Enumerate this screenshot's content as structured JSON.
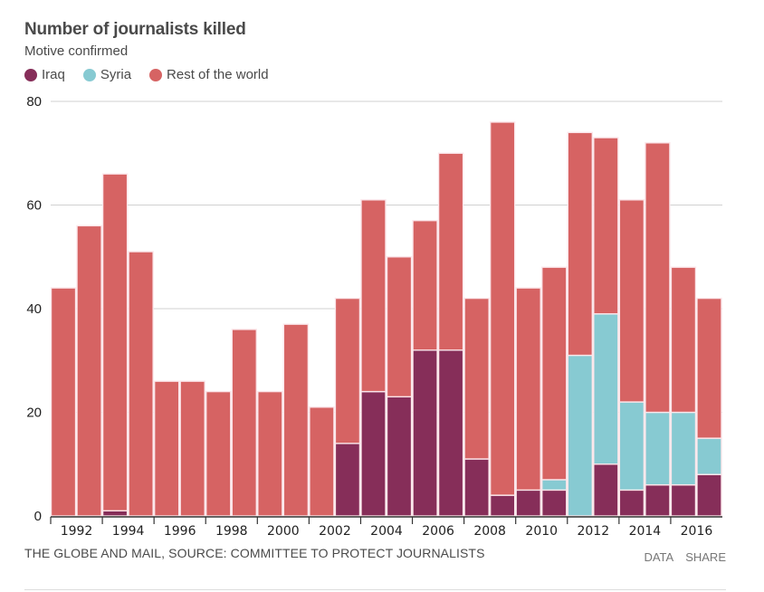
{
  "header": {
    "title": "Number of journalists killed",
    "subtitle": "Motive confirmed"
  },
  "legend": [
    {
      "label": "Iraq",
      "color": "#862e59"
    },
    {
      "label": "Syria",
      "color": "#87cad2"
    },
    {
      "label": "Rest of the world",
      "color": "#d66363"
    }
  ],
  "footer": {
    "source": "THE GLOBE AND MAIL, SOURCE: COMMITTEE TO PROTECT JOURNALISTS",
    "data_link": "DATA",
    "share_link": "SHARE"
  },
  "chart_data": {
    "type": "bar",
    "stacked": true,
    "title": "Number of journalists killed",
    "subtitle": "Motive confirmed",
    "xlabel": "",
    "ylabel": "",
    "ylim": [
      0,
      80
    ],
    "yticks": [
      0,
      20,
      40,
      60,
      80
    ],
    "grid": true,
    "legend_position": "top-left",
    "categories": [
      "1992",
      "1993",
      "1994",
      "1995",
      "1996",
      "1997",
      "1998",
      "1999",
      "2000",
      "2001",
      "2002",
      "2003",
      "2004",
      "2005",
      "2006",
      "2007",
      "2008",
      "2009",
      "2010",
      "2011",
      "2012",
      "2013",
      "2014",
      "2015",
      "2016",
      "2017"
    ],
    "xtick_labels": [
      "1992",
      "1994",
      "1996",
      "1998",
      "2000",
      "2002",
      "2004",
      "2006",
      "2008",
      "2010",
      "2012",
      "2014",
      "2016"
    ],
    "series": [
      {
        "name": "Iraq",
        "color": "#862e59",
        "values": [
          0,
          0,
          1,
          0,
          0,
          0,
          0,
          0,
          0,
          0,
          0,
          14,
          24,
          23,
          32,
          32,
          11,
          4,
          5,
          5,
          0,
          10,
          5,
          6,
          6,
          8
        ]
      },
      {
        "name": "Syria",
        "color": "#87cad2",
        "values": [
          0,
          0,
          0,
          0,
          0,
          0,
          0,
          0,
          0,
          0,
          0,
          0,
          0,
          0,
          0,
          0,
          0,
          0,
          0,
          2,
          31,
          29,
          17,
          14,
          14,
          7
        ]
      },
      {
        "name": "Rest of the world",
        "color": "#d66363",
        "values": [
          44,
          56,
          65,
          51,
          26,
          26,
          24,
          36,
          24,
          37,
          21,
          28,
          37,
          27,
          25,
          38,
          31,
          72,
          39,
          41,
          43,
          34,
          39,
          52,
          28,
          27
        ]
      }
    ],
    "totals": [
      44,
      56,
      66,
      51,
      26,
      26,
      24,
      36,
      24,
      37,
      21,
      42,
      61,
      50,
      57,
      70,
      42,
      76,
      44,
      48,
      74,
      73,
      61,
      72,
      48,
      42
    ]
  }
}
